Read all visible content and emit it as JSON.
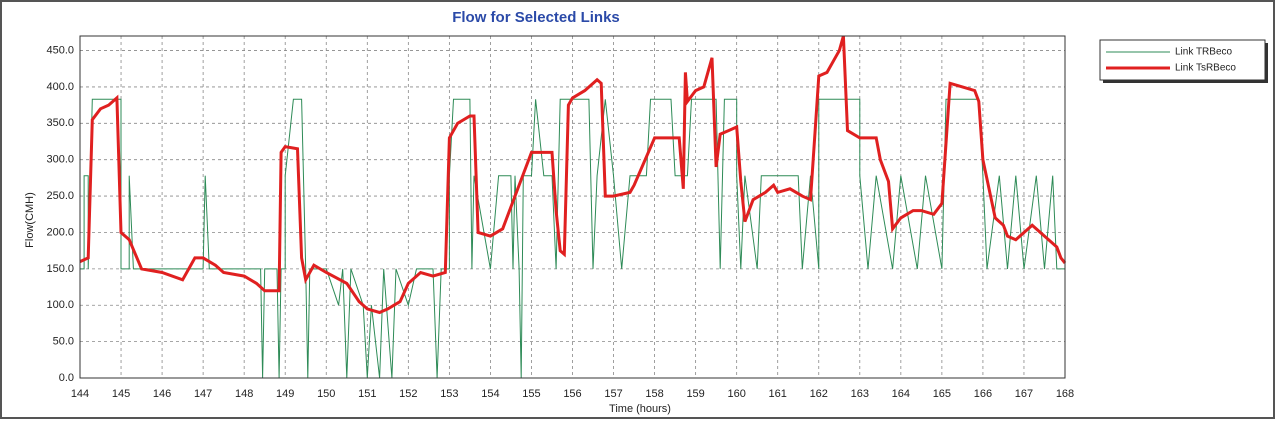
{
  "chart_data": {
    "type": "line",
    "title": "Flow for Selected Links",
    "x_label": "Time (hours)",
    "y_label": "Flow(CMH)",
    "xlim": [
      144,
      168
    ],
    "xticks": [
      144,
      145,
      146,
      147,
      148,
      149,
      150,
      151,
      152,
      153,
      154,
      155,
      156,
      157,
      158,
      159,
      160,
      161,
      162,
      163,
      164,
      165,
      166,
      167,
      168
    ],
    "ylim": [
      0,
      470
    ],
    "yticks": [
      {
        "value": 0,
        "label": "0.0"
      },
      {
        "value": 50,
        "label": "50.0"
      },
      {
        "value": 100,
        "label": "100.0"
      },
      {
        "value": 150,
        "label": "150.0"
      },
      {
        "value": 200,
        "label": "200.0"
      },
      {
        "value": 250,
        "label": "250.0"
      },
      {
        "value": 300,
        "label": "300.0"
      },
      {
        "value": 350,
        "label": "350.0"
      },
      {
        "value": 400,
        "label": "400.0"
      },
      {
        "value": 450,
        "label": "450.0"
      }
    ],
    "grid": true,
    "legend": "right",
    "series": [
      {
        "name": "Link TRBeco",
        "color": "#2e8b57",
        "x": [
          144,
          144.1,
          144.1,
          144.2,
          144.2,
          144.3,
          145,
          145,
          145.2,
          145.2,
          145.3,
          147,
          147,
          147.05,
          147.15,
          148.4,
          148.45,
          148.5,
          148.8,
          148.85,
          148.9,
          149,
          149,
          149.2,
          149.4,
          149.5,
          149.55,
          149.6,
          150,
          150.3,
          150.4,
          150.5,
          150.6,
          150.9,
          151,
          151.1,
          151.3,
          151.4,
          151.6,
          151.7,
          152,
          152.2,
          152.6,
          152.7,
          152.8,
          153,
          153,
          153.1,
          153.5,
          153.55,
          153.6,
          154,
          154.2,
          154.5,
          154.55,
          154.6,
          154.7,
          154.75,
          154.8,
          155,
          155.1,
          155.3,
          155.5,
          155.6,
          155.7,
          156,
          156.4,
          156.5,
          156.6,
          156.8,
          157,
          157.2,
          157.4,
          157.8,
          157.9,
          158.4,
          158.5,
          158.8,
          158.9,
          159.5,
          159.6,
          159.7,
          160,
          160,
          160.1,
          160.2,
          160.5,
          160.6,
          161.1,
          161.5,
          161.6,
          161.8,
          162,
          162,
          163,
          163,
          163.2,
          163.4,
          163.8,
          164,
          164.4,
          164.6,
          165,
          165.1,
          165.9,
          166,
          166.1,
          166.4,
          166.6,
          166.8,
          167,
          167.3,
          167.5,
          167.7,
          167.8,
          168
        ],
        "values": [
          150,
          150,
          278,
          278,
          150,
          383,
          383,
          150,
          150,
          278,
          150,
          150,
          150,
          278,
          150,
          150,
          0,
          150,
          150,
          0,
          150,
          150,
          278,
          383,
          383,
          150,
          0,
          150,
          150,
          100,
          150,
          0,
          150,
          100,
          0,
          100,
          0,
          150,
          0,
          150,
          100,
          150,
          150,
          0,
          150,
          150,
          278,
          383,
          383,
          150,
          278,
          150,
          278,
          278,
          150,
          278,
          150,
          0,
          278,
          278,
          383,
          278,
          278,
          150,
          383,
          383,
          383,
          150,
          278,
          383,
          278,
          150,
          278,
          278,
          383,
          383,
          278,
          278,
          383,
          383,
          150,
          383,
          383,
          278,
          150,
          278,
          150,
          278,
          278,
          278,
          150,
          278,
          150,
          383,
          383,
          278,
          150,
          278,
          150,
          278,
          150,
          278,
          150,
          383,
          383,
          278,
          150,
          278,
          150,
          278,
          150,
          278,
          150,
          278,
          150,
          150
        ]
      },
      {
        "name": "Link TsRBeco",
        "color": "#e02020",
        "x": [
          144,
          144.2,
          144.3,
          144.5,
          144.7,
          144.9,
          145,
          145.2,
          145.5,
          146,
          146.5,
          146.8,
          147,
          147.3,
          147.5,
          148,
          148.3,
          148.5,
          148.85,
          148.9,
          149,
          149.3,
          149.4,
          149.5,
          149.7,
          150,
          150.5,
          150.8,
          151,
          151.3,
          151.5,
          151.8,
          152,
          152.3,
          152.6,
          152.9,
          153,
          153.2,
          153.5,
          153.6,
          153.7,
          154,
          154.3,
          154.5,
          155,
          155.5,
          155.6,
          155.7,
          155.8,
          155.9,
          156,
          156.3,
          156.6,
          156.7,
          156.8,
          157,
          157.4,
          157.5,
          158,
          158.6,
          158.7,
          158.75,
          158.8,
          159,
          159.2,
          159.4,
          159.5,
          159.6,
          159.8,
          160,
          160.1,
          160.2,
          160.4,
          160.7,
          160.9,
          161,
          161.3,
          161.6,
          161.8,
          162,
          162.2,
          162.4,
          162.5,
          162.6,
          162.7,
          163,
          163.4,
          163.5,
          163.7,
          163.8,
          164,
          164.3,
          164.5,
          164.8,
          165,
          165.2,
          165.5,
          165.8,
          165.9,
          166,
          166.3,
          166.5,
          166.6,
          166.8,
          167,
          167.2,
          167.4,
          167.6,
          167.8,
          167.9,
          168
        ],
        "values": [
          160,
          165,
          355,
          370,
          375,
          385,
          200,
          190,
          150,
          145,
          135,
          165,
          165,
          155,
          145,
          140,
          130,
          120,
          120,
          310,
          318,
          315,
          165,
          135,
          155,
          145,
          130,
          105,
          95,
          90,
          95,
          105,
          130,
          145,
          140,
          145,
          330,
          350,
          360,
          360,
          200,
          195,
          205,
          235,
          310,
          310,
          230,
          175,
          170,
          375,
          385,
          395,
          410,
          405,
          250,
          250,
          255,
          265,
          330,
          330,
          260,
          420,
          380,
          395,
          400,
          440,
          290,
          335,
          340,
          345,
          270,
          215,
          245,
          255,
          265,
          255,
          260,
          250,
          245,
          415,
          420,
          440,
          450,
          470,
          340,
          330,
          330,
          300,
          270,
          205,
          220,
          230,
          230,
          225,
          240,
          405,
          400,
          395,
          380,
          300,
          220,
          210,
          195,
          190,
          200,
          210,
          200,
          190,
          180,
          165,
          158
        ]
      }
    ]
  }
}
